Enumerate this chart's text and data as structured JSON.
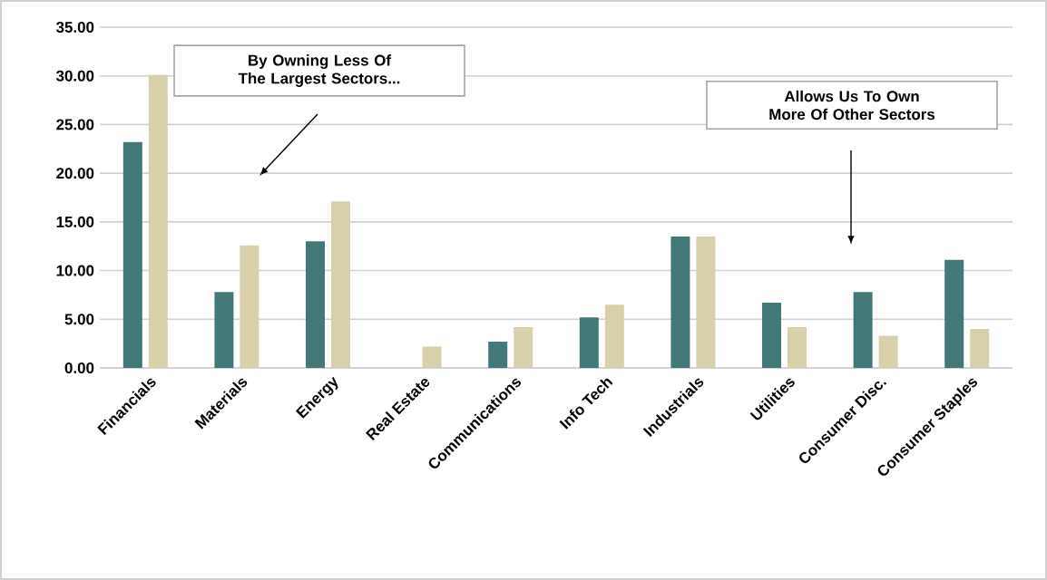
{
  "chart_data": {
    "type": "bar",
    "categories": [
      "Financials",
      "Materials",
      "Energy",
      "Real Estate",
      "Communications",
      "Info Tech",
      "Industrials",
      "Utilities",
      "Consumer Disc.",
      "Consumer Staples"
    ],
    "series": [
      {
        "color": "#437878",
        "values": [
          23.2,
          7.8,
          13.0,
          0,
          2.7,
          5.2,
          13.5,
          6.7,
          7.8,
          11.1
        ]
      },
      {
        "color": "#d8d0aa",
        "values": [
          30.1,
          12.6,
          17.1,
          2.2,
          4.2,
          6.5,
          13.5,
          4.2,
          3.3,
          4.0
        ]
      }
    ],
    "ylim": [
      0,
      35
    ],
    "yticks": [
      {
        "value": 0,
        "label": "0.00"
      },
      {
        "value": 5,
        "label": "5.00"
      },
      {
        "value": 10,
        "label": "10.00"
      },
      {
        "value": 15,
        "label": "15.00"
      },
      {
        "value": 20,
        "label": "20.00"
      },
      {
        "value": 25,
        "label": "25.00"
      },
      {
        "value": 30,
        "label": "30.00"
      },
      {
        "value": 35,
        "label": "35.00"
      }
    ],
    "grid": "y",
    "annotations": [
      "By Owning Less Of The Largest Sectors...",
      "Allows Us To Own More Of Other Sectors"
    ]
  }
}
